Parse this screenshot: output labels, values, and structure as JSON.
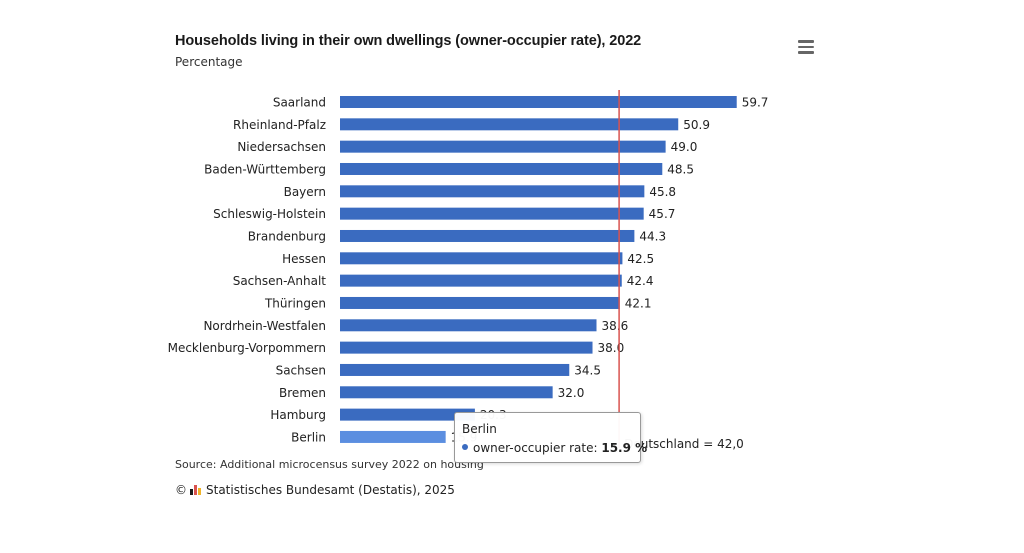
{
  "header": {
    "title": "Households living in their own dwellings (owner-occupier rate), 2022",
    "subtitle": "Percentage"
  },
  "footer": {
    "source": "Source: Additional microcensus survey 2022 on housing",
    "copyright_symbol": "©",
    "copyright": "Statistisches Bundesamt (Destatis), 2025"
  },
  "tooltip": {
    "name": "Berlin",
    "series_label": "owner-occupier rate:",
    "value_text": "15.9 %"
  },
  "colors": {
    "bar": "#3a6bc0",
    "bar_highlight": "#5b8ee0",
    "reference_line": "#d9534f",
    "logo": [
      "#1a1a1a",
      "#d9534f",
      "#f0b429"
    ]
  },
  "icons": {
    "menu": "hamburger-menu-icon",
    "logo": "destatis-logo-icon"
  },
  "chart_data": {
    "type": "bar",
    "orientation": "horizontal",
    "categories": [
      "Saarland",
      "Rheinland-Pfalz",
      "Niedersachsen",
      "Baden-Württemberg",
      "Bayern",
      "Schleswig-Holstein",
      "Brandenburg",
      "Hessen",
      "Sachsen-Anhalt",
      "Thüringen",
      "Nordrhein-Westfalen",
      "Mecklenburg-Vorpommern",
      "Sachsen",
      "Bremen",
      "Hamburg",
      "Berlin"
    ],
    "values": [
      59.7,
      50.9,
      49.0,
      48.5,
      45.8,
      45.7,
      44.3,
      42.5,
      42.4,
      42.1,
      38.6,
      38.0,
      34.5,
      32.0,
      20.3,
      15.9
    ],
    "value_labels": [
      "59.7",
      "50.9",
      "49.0",
      "48.5",
      "45.8",
      "45.7",
      "44.3",
      "42.5",
      "42.4",
      "42.1",
      "38.6",
      "38.0",
      "34.5",
      "32.0",
      "20.3",
      "15.9"
    ],
    "highlighted": "Berlin",
    "xlim": [
      0,
      62
    ],
    "reference_line": {
      "value": 42.0,
      "label": "Deutschland = 42,0"
    },
    "grid": false,
    "legend": "none"
  }
}
